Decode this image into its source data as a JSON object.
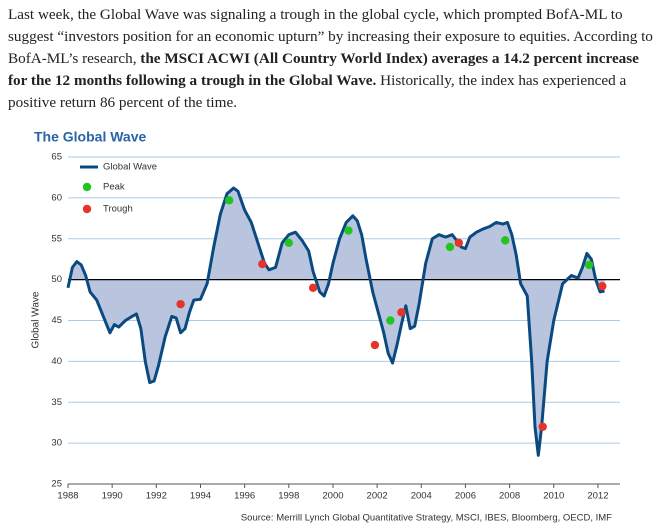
{
  "paragraph": [
    "Last week, the Global Wave was signaling a trough in the global cycle, which prompted BofA-ML to suggest “investors position for an economic upturn” by increasing their exposure to equities. According to BofA-ML’s research, ",
    "the MSCI ACWI (All Country World Index) averages a 14.2 percent increase for the 12 months following a trough in the Global Wave.",
    " Historically, the index has experienced a positive return 86 percent of the time."
  ],
  "chart_data": {
    "type": "line",
    "title": "The Global Wave",
    "y_label": "Global Wave",
    "source": "Source: Merrill Lynch Global Quantitative Strategy, MSCI, IBES, Bloomberg, OECD, IMF",
    "xlim": [
      1988,
      2013
    ],
    "xticks": [
      1988,
      1990,
      1992,
      1994,
      1996,
      1998,
      2000,
      2002,
      2004,
      2006,
      2008,
      2010,
      2012
    ],
    "ylim": [
      25,
      65
    ],
    "yticks": [
      25,
      30,
      35,
      40,
      45,
      50,
      55,
      60,
      65
    ],
    "grid": true,
    "reference_line": 50,
    "area_color": "#b9c5df",
    "series": [
      {
        "name": "Global Wave",
        "color": "#0b4a80",
        "x": [
          1988.0,
          1988.2,
          1988.4,
          1988.6,
          1988.8,
          1989.0,
          1989.3,
          1989.6,
          1989.9,
          1990.1,
          1990.3,
          1990.6,
          1990.9,
          1991.1,
          1991.3,
          1991.5,
          1991.7,
          1991.9,
          1992.1,
          1992.4,
          1992.7,
          1992.9,
          1993.1,
          1993.3,
          1993.5,
          1993.7,
          1994.0,
          1994.3,
          1994.6,
          1994.9,
          1995.2,
          1995.5,
          1995.7,
          1996.0,
          1996.3,
          1996.6,
          1996.9,
          1997.1,
          1997.4,
          1997.7,
          1998.0,
          1998.3,
          1998.6,
          1998.9,
          1999.1,
          1999.4,
          1999.6,
          1999.8,
          2000.0,
          2000.3,
          2000.6,
          2000.9,
          2001.1,
          2001.3,
          2001.5,
          2001.8,
          2002.0,
          2002.3,
          2002.5,
          2002.7,
          2002.9,
          2003.1,
          2003.3,
          2003.5,
          2003.7,
          2003.9,
          2004.2,
          2004.5,
          2004.8,
          2005.1,
          2005.4,
          2005.6,
          2005.8,
          2006.0,
          2006.2,
          2006.5,
          2006.8,
          2007.1,
          2007.4,
          2007.7,
          2007.9,
          2008.1,
          2008.3,
          2008.5,
          2008.8,
          2009.0,
          2009.15,
          2009.3,
          2009.45,
          2009.7,
          2010.0,
          2010.4,
          2010.8,
          2011.1,
          2011.3,
          2011.5,
          2011.7,
          2011.9,
          2012.1,
          2012.3
        ],
        "values": [
          49,
          51.5,
          52.2,
          51.8,
          50.5,
          48.5,
          47.5,
          45.5,
          43.5,
          44.5,
          44.2,
          45,
          45.5,
          45.8,
          44,
          40,
          37.4,
          37.6,
          39.5,
          43,
          45.5,
          45.3,
          43.5,
          44,
          46,
          47.5,
          47.6,
          49.5,
          54,
          58,
          60.5,
          61.2,
          60.8,
          58.5,
          57,
          54.5,
          52,
          51.2,
          51.5,
          54.5,
          55.5,
          55.8,
          54.8,
          53.5,
          51,
          48.5,
          48,
          49.5,
          52,
          55,
          57,
          57.8,
          57.2,
          55.5,
          52.5,
          48.5,
          46.5,
          43.5,
          41,
          39.8,
          42,
          44.5,
          46.8,
          44,
          44.3,
          47,
          52,
          55,
          55.5,
          55.2,
          55.5,
          54.8,
          54,
          53.8,
          55.2,
          55.8,
          56.2,
          56.5,
          57,
          56.8,
          57,
          55.5,
          53,
          49.5,
          48,
          40,
          32,
          28.5,
          32,
          40,
          45,
          49.5,
          50.5,
          50.2,
          51.5,
          53.2,
          52.5,
          50,
          48.5,
          48.6
        ]
      },
      {
        "name": "Peak",
        "color": "#22c422",
        "x": [
          1995.3,
          1998.0,
          2000.7,
          2002.6,
          2005.3,
          2007.8,
          2011.6
        ],
        "values": [
          59.7,
          54.5,
          56,
          45,
          54,
          54.8,
          51.8
        ]
      },
      {
        "name": "Trough",
        "color": "#e5352b",
        "x": [
          1993.1,
          1996.8,
          1999.1,
          2001.9,
          2003.1,
          2005.7,
          2009.5,
          2012.2
        ],
        "values": [
          47,
          51.9,
          49,
          42,
          46,
          54.5,
          32,
          49.2
        ]
      }
    ]
  }
}
